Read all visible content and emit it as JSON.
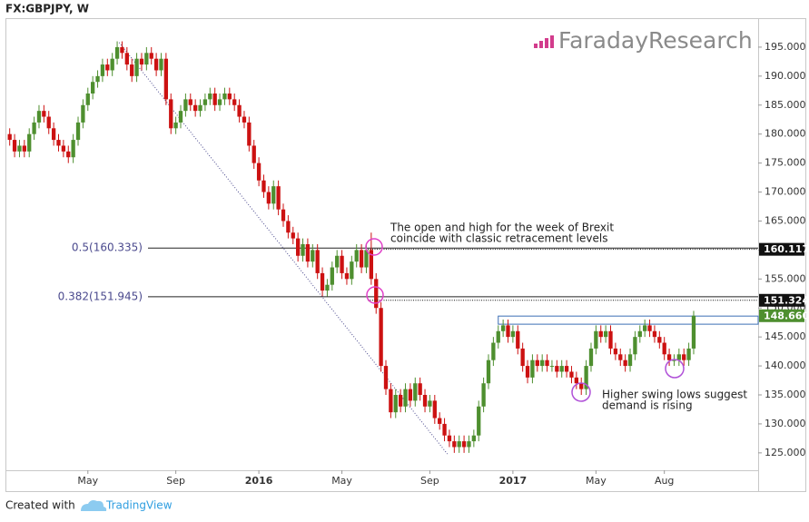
{
  "chart_data": {
    "type": "candlestick",
    "title": "FX:GBPJPY, W",
    "watermark": "FaradayResearch",
    "footer": {
      "prefix": "Created with",
      "brand": "TradingView"
    },
    "up_color": "#4e8f2f",
    "down_color": "#cc1111",
    "xlim": [
      -0.5,
      153.2
    ],
    "ylim": [
      122,
      200
    ],
    "xticks": [
      {
        "value": 16,
        "label": "May"
      },
      {
        "value": 34,
        "label": "Sep"
      },
      {
        "value": 51,
        "label": "2016"
      },
      {
        "value": 68,
        "label": "May"
      },
      {
        "value": 86,
        "label": "Sep"
      },
      {
        "value": 103,
        "label": "2017"
      },
      {
        "value": 120,
        "label": "May"
      },
      {
        "value": 134,
        "label": "Aug"
      }
    ],
    "yticks": [
      {
        "value": 125,
        "label": "125.000"
      },
      {
        "value": 130,
        "label": "130.000"
      },
      {
        "value": 135,
        "label": "135.000"
      },
      {
        "value": 140,
        "label": "140.000"
      },
      {
        "value": 145,
        "label": "145.000"
      },
      {
        "value": 150,
        "label": "150.000"
      },
      {
        "value": 155,
        "label": "155.000"
      },
      {
        "value": 160,
        "label": "160.000"
      },
      {
        "value": 165,
        "label": "165.000"
      },
      {
        "value": 170,
        "label": "170.000"
      },
      {
        "value": 175,
        "label": "175.000"
      },
      {
        "value": 180,
        "label": "180.000"
      },
      {
        "value": 185,
        "label": "185.000"
      },
      {
        "value": 190,
        "label": "190.000"
      },
      {
        "value": 195,
        "label": "195.000"
      }
    ],
    "levels": [
      {
        "label": "0.5(160.335)",
        "value": 160.335
      },
      {
        "label": "0.382(151.945)",
        "value": 151.945
      }
    ],
    "price_markers": [
      {
        "value": 160.117,
        "label": "160.117",
        "color": "#111111"
      },
      {
        "value": 151.324,
        "label": "151.324",
        "color": "#111111"
      },
      {
        "value": 148.66,
        "label": "148.660",
        "color": "#4e8f2f"
      }
    ],
    "zone": {
      "from": 100,
      "y": [
        147.2,
        148.6
      ],
      "color": "#3b6fb5"
    },
    "trendline": {
      "x": [
        22.4,
        89.6
      ],
      "y": [
        195.8,
        124.8
      ],
      "color": "#4b4a8e"
    },
    "annotations": [
      {
        "lines": [
          "The open and high for the week of Brexit",
          "coincide with classic retracement levels"
        ]
      },
      {
        "lines": [
          "Higher swing lows suggest",
          "demand is rising"
        ]
      }
    ],
    "candles": [
      [
        180,
        181,
        178,
        179
      ],
      [
        179,
        180,
        176,
        177
      ],
      [
        177,
        179,
        176,
        178
      ],
      [
        178,
        179,
        176,
        177
      ],
      [
        177,
        181,
        176,
        180
      ],
      [
        180,
        183,
        179,
        182
      ],
      [
        182,
        185,
        181,
        184
      ],
      [
        184,
        185,
        182,
        183
      ],
      [
        183,
        184,
        180,
        181
      ],
      [
        181,
        182,
        178,
        179
      ],
      [
        179,
        180,
        177,
        178
      ],
      [
        178,
        179,
        176,
        177
      ],
      [
        177,
        178,
        175,
        176
      ],
      [
        176,
        180,
        175,
        179
      ],
      [
        179,
        183,
        178,
        182
      ],
      [
        182,
        186,
        181,
        185
      ],
      [
        185,
        188,
        184,
        187
      ],
      [
        187,
        190,
        186,
        189
      ],
      [
        189,
        191,
        188,
        190
      ],
      [
        190,
        193,
        189,
        192
      ],
      [
        192,
        193,
        190,
        191
      ],
      [
        191,
        194,
        190,
        193
      ],
      [
        193,
        196,
        192,
        195
      ],
      [
        195,
        196,
        193,
        194
      ],
      [
        194,
        195,
        191,
        192
      ],
      [
        192,
        193,
        189,
        190
      ],
      [
        190,
        194,
        189,
        193
      ],
      [
        193,
        194,
        191,
        192
      ],
      [
        192,
        195,
        191,
        194
      ],
      [
        194,
        195,
        192,
        193
      ],
      [
        193,
        194,
        190,
        191
      ],
      [
        191,
        194,
        190,
        193
      ],
      [
        193,
        194,
        185,
        186
      ],
      [
        186,
        187,
        180,
        181
      ],
      [
        181,
        183,
        180,
        182
      ],
      [
        182,
        185,
        181,
        184
      ],
      [
        184,
        187,
        183,
        186
      ],
      [
        186,
        187,
        184,
        185
      ],
      [
        185,
        186,
        183,
        184
      ],
      [
        184,
        186,
        183,
        185
      ],
      [
        185,
        187,
        184,
        186
      ],
      [
        186,
        188,
        185,
        187
      ],
      [
        187,
        188,
        184,
        185
      ],
      [
        185,
        187,
        184,
        186
      ],
      [
        186,
        188,
        185,
        187
      ],
      [
        187,
        188,
        185,
        186
      ],
      [
        186,
        187,
        184,
        185
      ],
      [
        185,
        186,
        182,
        183
      ],
      [
        183,
        184,
        181,
        182
      ],
      [
        182,
        183,
        177,
        178
      ],
      [
        178,
        179,
        174,
        175
      ],
      [
        175,
        176,
        171,
        172
      ],
      [
        172,
        173,
        169,
        170
      ],
      [
        170,
        171,
        167,
        168
      ],
      [
        168,
        172,
        167,
        171
      ],
      [
        171,
        172,
        166,
        167
      ],
      [
        167,
        168,
        164,
        165
      ],
      [
        165,
        166,
        162,
        163
      ],
      [
        163,
        164,
        161,
        162
      ],
      [
        162,
        163,
        158,
        159
      ],
      [
        159,
        162,
        158,
        161
      ],
      [
        161,
        162,
        157,
        158
      ],
      [
        158,
        161,
        157,
        160
      ],
      [
        160,
        161,
        155,
        156
      ],
      [
        156,
        157,
        152,
        153
      ],
      [
        153,
        155,
        152,
        154
      ],
      [
        154,
        158,
        153,
        157
      ],
      [
        157,
        160,
        156,
        159
      ],
      [
        159,
        160,
        155,
        156
      ],
      [
        156,
        157,
        154,
        155
      ],
      [
        155,
        159,
        154,
        158
      ],
      [
        158,
        161,
        157,
        160
      ],
      [
        160,
        161,
        156,
        157
      ],
      [
        157,
        161,
        156,
        160
      ],
      [
        160,
        163,
        154,
        155
      ],
      [
        155,
        156,
        149,
        150
      ],
      [
        150,
        151,
        139,
        140
      ],
      [
        140,
        141,
        135,
        136
      ],
      [
        136,
        137,
        131,
        132
      ],
      [
        132,
        136,
        131,
        135
      ],
      [
        135,
        136,
        132,
        133
      ],
      [
        133,
        137,
        132,
        136
      ],
      [
        136,
        137,
        133,
        134
      ],
      [
        134,
        138,
        133,
        137
      ],
      [
        137,
        138,
        134,
        135
      ],
      [
        135,
        136,
        132,
        133
      ],
      [
        133,
        135,
        132,
        134
      ],
      [
        134,
        135,
        130,
        131
      ],
      [
        131,
        132,
        129,
        130
      ],
      [
        130,
        131,
        127,
        128
      ],
      [
        128,
        129,
        126,
        127
      ],
      [
        127,
        128,
        125,
        126
      ],
      [
        126,
        128,
        125,
        127
      ],
      [
        127,
        128,
        125,
        126
      ],
      [
        126,
        128,
        125,
        127
      ],
      [
        127,
        129,
        126,
        128
      ],
      [
        128,
        134,
        127,
        133
      ],
      [
        133,
        138,
        132,
        137
      ],
      [
        137,
        142,
        136,
        141
      ],
      [
        141,
        145,
        140,
        144
      ],
      [
        144,
        147,
        143,
        146
      ],
      [
        146,
        148,
        145,
        147
      ],
      [
        147,
        148,
        144,
        145
      ],
      [
        145,
        147,
        144,
        146
      ],
      [
        146,
        147,
        142,
        143
      ],
      [
        143,
        144,
        139,
        140
      ],
      [
        140,
        141,
        137,
        138
      ],
      [
        138,
        142,
        137,
        141
      ],
      [
        141,
        142,
        139,
        140
      ],
      [
        140,
        142,
        139,
        141
      ],
      [
        141,
        142,
        139,
        140
      ],
      [
        140,
        141,
        139,
        140
      ],
      [
        140,
        141,
        138,
        139
      ],
      [
        139,
        141,
        138,
        140
      ],
      [
        140,
        141,
        138,
        139
      ],
      [
        139,
        140,
        137,
        138
      ],
      [
        138,
        139,
        136,
        137
      ],
      [
        137,
        138,
        135,
        136
      ],
      [
        136,
        141,
        135,
        140
      ],
      [
        140,
        144,
        139,
        143
      ],
      [
        143,
        147,
        142,
        146
      ],
      [
        146,
        147,
        144,
        145
      ],
      [
        145,
        147,
        144,
        146
      ],
      [
        146,
        147,
        142,
        143
      ],
      [
        143,
        144,
        141,
        142
      ],
      [
        142,
        143,
        140,
        141
      ],
      [
        141,
        142,
        139,
        140
      ],
      [
        140,
        143,
        139,
        142
      ],
      [
        142,
        146,
        141,
        145
      ],
      [
        145,
        147,
        144,
        146
      ],
      [
        146,
        148,
        145,
        147
      ],
      [
        147,
        148,
        145,
        146
      ],
      [
        146,
        147,
        144,
        145
      ],
      [
        145,
        146,
        143,
        144
      ],
      [
        144,
        145,
        141,
        142
      ],
      [
        142,
        143,
        140,
        141
      ],
      [
        141,
        142,
        140,
        141
      ],
      [
        141,
        143,
        140,
        142
      ],
      [
        142,
        143,
        140,
        141
      ],
      [
        141,
        144,
        140,
        143
      ],
      [
        143,
        149.5,
        142,
        148.66
      ]
    ]
  }
}
